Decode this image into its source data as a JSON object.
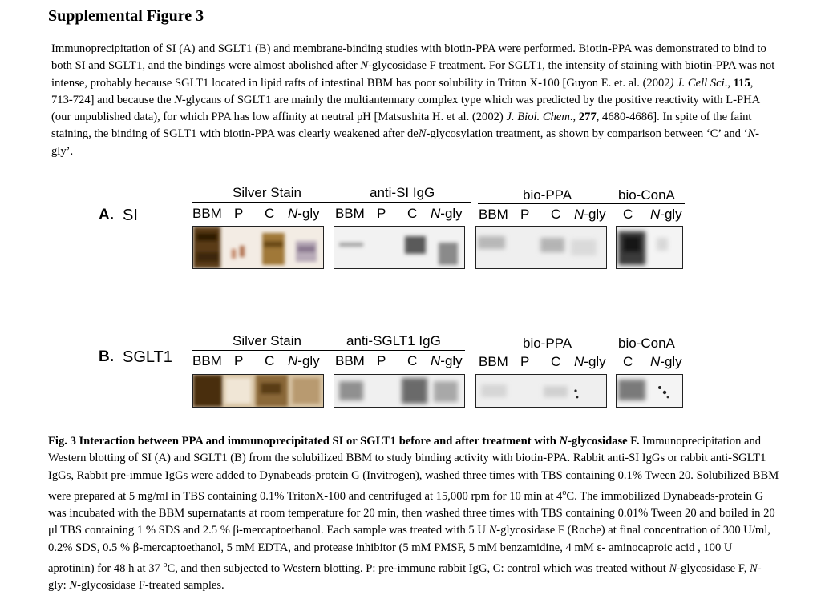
{
  "title": "Supplemental Figure 3",
  "intro": {
    "seg1": "Immunoprecipitation of SI (A) and SGLT1 (B) and membrane-binding studies with biotin-PPA were performed. Biotin-PPA was demonstrated to bind to both SI and SGLT1, and the bindings were almost abolished after ",
    "n1": "N",
    "seg2": "-glycosidase F treatment. For SGLT1, the intensity of staining with biotin-PPA was not intense, probably because SGLT1 located in lipid rafts of intestinal BBM has poor solubility in Triton X-100 [Guyon E. et. al. (2002",
    "ref1_journal": ") J. Cell Sci",
    "seg3": "., ",
    "ref1_vol": "115",
    "seg4": ", 713-724] and because the ",
    "n2": "N",
    "seg5": "-glycans of SGLT1 are mainly the multiantennary complex type which was predicted by the positive reactivity with L-PHA (our unpublished data), for which PPA has low affinity at neutral pH [Matsushita H. et al. (2002) ",
    "ref2_journal": "J. Biol. Chem",
    "seg6": "., ",
    "ref2_vol": "277",
    "seg7": ", 4680-4686]. In spite of the faint staining, the binding of SGLT1 with biotin-PPA was clearly weakened after de",
    "n3": "N",
    "seg8": "-glycosylation treatment, as shown by comparison between ‘C’ and ‘",
    "n4": "N",
    "seg9": "-gly’."
  },
  "groups": {
    "silver_stain": "Silver Stain",
    "anti_si": "anti-SI IgG",
    "anti_sglt1": "anti-SGLT1 IgG",
    "bio_ppa": "bio-PPA",
    "bio_cona": "bio-ConA"
  },
  "lanes": {
    "bbm": "BBM",
    "p": "P",
    "c": "C",
    "n_italic": "N",
    "gly_suffix": "-gly"
  },
  "panels": {
    "a_letter": "A.",
    "a_name": "SI",
    "b_letter": "B.",
    "b_name": "SGLT1"
  },
  "caption": {
    "bold_seg1": "Fig. 3 Interaction between PPA and immunoprecipitated SI or SGLT1 before and after treatment with ",
    "bold_n": "N",
    "bold_seg2": "-glycosidase F.",
    "seg1": " Immunoprecipitation and Western blotting of SI (A) and SGLT1 (B) from the solubilized BBM to study binding activity with biotin-PPA. Rabbit anti-SI IgGs or rabbit anti-SGLT1 IgGs, Rabbit pre-immue IgGs were added to Dynabeads-protein G (Invitrogen), washed three times with TBS containing 0.1% Tween 20. Solubilized BBM were prepared at 5 mg/ml in TBS containing 0.1% TritonX-100 and centrifuged at 15,000 rpm for 10 min at 4",
    "sup1": "o",
    "seg2": "C.  The immobilized Dynabeads-protein G was incubated with the BBM supernatants at room temperature for 20 min, then washed three times with TBS containing  0.01% Tween 20 and boiled in 20 μl TBS containing 1 % SDS  and 2.5 % β-mercaptoethanol. Each sample was treated with 5 U ",
    "n1": "N",
    "seg3": "-glycosidase F (Roche) at final concentration of 300 U/ml, 0.2% SDS, 0.5 % β-mercaptoethanol, 5 mM EDTA, and protease inhibitor (5 mM PMSF, 5 mM benzamidine, 4 mM ε- aminocaproic acid , 100 U aprotinin) for 48 h at 37 ",
    "sup2": "o",
    "seg4": "C, and then subjected to Western blotting. P: pre-immune rabbit IgG, C: control which was treated without ",
    "n2": "N",
    "seg5": "-glycosidase F, ",
    "n3": "N",
    "seg6": "-gly: ",
    "n4": "N",
    "seg7": "-glycosidase F-treated samples."
  },
  "colors": {
    "silver_dark": "#5a3a12",
    "silver_mid": "#a07838",
    "silver_light": "#e8d8bc",
    "blot_gray": "#3a3a3a"
  }
}
